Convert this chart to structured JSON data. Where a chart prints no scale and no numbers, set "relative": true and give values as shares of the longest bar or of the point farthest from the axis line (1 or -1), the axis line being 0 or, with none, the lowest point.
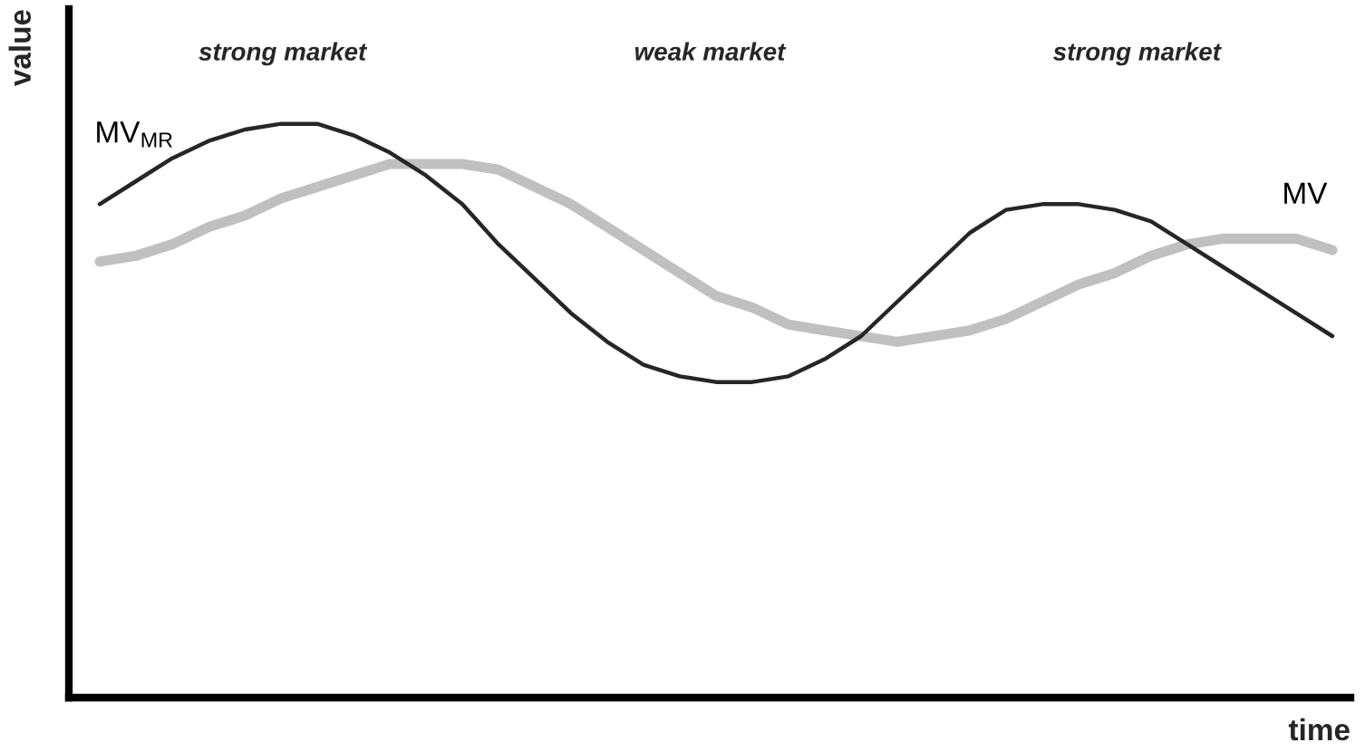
{
  "chart_data": {
    "type": "line",
    "relative": true,
    "xlabel": "time",
    "ylabel": "value",
    "annotations": [
      "strong market",
      "weak market",
      "strong market"
    ],
    "categories": [
      null,
      null,
      null,
      null,
      null,
      null,
      null,
      null,
      null,
      null,
      null,
      null,
      null,
      null,
      null,
      null,
      null,
      null,
      null,
      null,
      null,
      null,
      null,
      null,
      null,
      null,
      null,
      null,
      null,
      null,
      null,
      null,
      null,
      null,
      null
    ],
    "legend": false,
    "series": [
      {
        "name": "MV$_{MR}$",
        "color": "#262626",
        "values": [
          0.86,
          0.9,
          0.94,
          0.97,
          0.99,
          1.0,
          1.0,
          0.98,
          0.95,
          0.91,
          0.86,
          0.79,
          0.73,
          0.67,
          0.62,
          0.58,
          0.56,
          0.55,
          0.55,
          0.56,
          0.59,
          0.63,
          0.69,
          0.75,
          0.81,
          0.85,
          0.86,
          0.86,
          0.85,
          0.83,
          0.79,
          0.75,
          0.71,
          0.67,
          0.63
        ]
      },
      {
        "name": "MV",
        "color": "#c0c0c0",
        "values": [
          0.76,
          0.77,
          0.79,
          0.82,
          0.84,
          0.87,
          0.89,
          0.91,
          0.93,
          0.93,
          0.93,
          0.92,
          0.89,
          0.86,
          0.82,
          0.78,
          0.74,
          0.7,
          0.68,
          0.65,
          0.64,
          0.63,
          0.62,
          0.63,
          0.64,
          0.66,
          0.69,
          0.72,
          0.74,
          0.77,
          0.79,
          0.8,
          0.8,
          0.8,
          0.78
        ]
      }
    ]
  }
}
